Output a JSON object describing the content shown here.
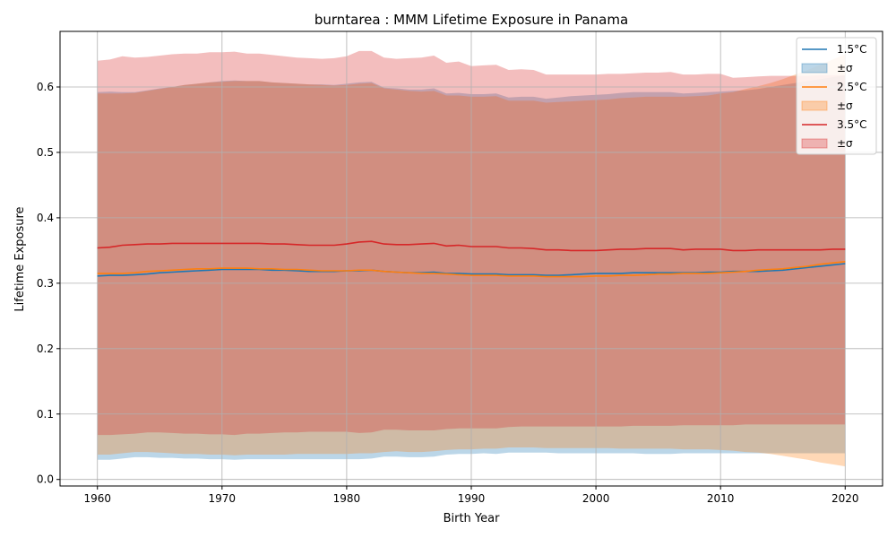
{
  "chart_data": {
    "type": "line",
    "title": "burntarea : MMM Lifetime Exposure in Panama",
    "xlabel": "Birth Year",
    "ylabel": "Lifetime Exposure",
    "xlim": [
      1957,
      2023
    ],
    "ylim": [
      -0.01,
      0.685
    ],
    "xticks": [
      1960,
      1970,
      1980,
      1990,
      2000,
      2010,
      2020
    ],
    "yticks": [
      0.0,
      0.1,
      0.2,
      0.3,
      0.4,
      0.5,
      0.6
    ],
    "grid": true,
    "legend_position": "top-right",
    "x": [
      1960,
      1961,
      1962,
      1963,
      1964,
      1965,
      1966,
      1967,
      1968,
      1969,
      1970,
      1971,
      1972,
      1973,
      1974,
      1975,
      1976,
      1977,
      1978,
      1979,
      1980,
      1981,
      1982,
      1983,
      1984,
      1985,
      1986,
      1987,
      1988,
      1989,
      1990,
      1991,
      1992,
      1993,
      1994,
      1995,
      1996,
      1997,
      1998,
      1999,
      2000,
      2001,
      2002,
      2003,
      2004,
      2005,
      2006,
      2007,
      2008,
      2009,
      2010,
      2011,
      2012,
      2013,
      2014,
      2015,
      2016,
      2017,
      2018,
      2019,
      2020
    ],
    "series": [
      {
        "name": "1.5°C",
        "band_label": "±σ",
        "color": "#1f77b4",
        "values": [
          0.311,
          0.312,
          0.312,
          0.313,
          0.314,
          0.316,
          0.317,
          0.318,
          0.319,
          0.32,
          0.321,
          0.321,
          0.321,
          0.321,
          0.32,
          0.32,
          0.319,
          0.318,
          0.318,
          0.318,
          0.319,
          0.319,
          0.32,
          0.318,
          0.317,
          0.316,
          0.316,
          0.317,
          0.315,
          0.315,
          0.314,
          0.314,
          0.314,
          0.313,
          0.313,
          0.313,
          0.312,
          0.312,
          0.313,
          0.314,
          0.315,
          0.315,
          0.315,
          0.316,
          0.316,
          0.316,
          0.316,
          0.316,
          0.316,
          0.317,
          0.317,
          0.318,
          0.318,
          0.318,
          0.319,
          0.32,
          0.322,
          0.324,
          0.326,
          0.328,
          0.33
        ],
        "lower": [
          0.03,
          0.03,
          0.032,
          0.034,
          0.034,
          0.033,
          0.033,
          0.032,
          0.032,
          0.031,
          0.031,
          0.03,
          0.031,
          0.031,
          0.031,
          0.031,
          0.031,
          0.031,
          0.031,
          0.031,
          0.031,
          0.031,
          0.032,
          0.035,
          0.035,
          0.034,
          0.034,
          0.035,
          0.038,
          0.039,
          0.039,
          0.04,
          0.039,
          0.041,
          0.041,
          0.041,
          0.041,
          0.04,
          0.04,
          0.04,
          0.04,
          0.04,
          0.04,
          0.04,
          0.039,
          0.039,
          0.039,
          0.04,
          0.04,
          0.04,
          0.04,
          0.04,
          0.04,
          0.04,
          0.04,
          0.04,
          0.04,
          0.04,
          0.04,
          0.04,
          0.04
        ],
        "upper": [
          0.592,
          0.593,
          0.592,
          0.592,
          0.595,
          0.598,
          0.6,
          0.603,
          0.605,
          0.607,
          0.609,
          0.61,
          0.609,
          0.609,
          0.607,
          0.606,
          0.605,
          0.604,
          0.604,
          0.603,
          0.605,
          0.607,
          0.608,
          0.599,
          0.598,
          0.596,
          0.596,
          0.598,
          0.59,
          0.591,
          0.589,
          0.589,
          0.59,
          0.584,
          0.585,
          0.585,
          0.582,
          0.584,
          0.586,
          0.587,
          0.588,
          0.589,
          0.591,
          0.592,
          0.592,
          0.592,
          0.592,
          0.59,
          0.591,
          0.592,
          0.593,
          0.594,
          0.595,
          0.597,
          0.6,
          0.603,
          0.606,
          0.609,
          0.612,
          0.615,
          0.618
        ]
      },
      {
        "name": "2.5°C",
        "band_label": "±σ",
        "color": "#ff7f0e",
        "values": [
          0.315,
          0.315,
          0.315,
          0.316,
          0.318,
          0.319,
          0.32,
          0.321,
          0.322,
          0.322,
          0.323,
          0.323,
          0.323,
          0.322,
          0.322,
          0.321,
          0.321,
          0.32,
          0.319,
          0.319,
          0.319,
          0.32,
          0.32,
          0.318,
          0.317,
          0.316,
          0.315,
          0.315,
          0.314,
          0.313,
          0.312,
          0.312,
          0.312,
          0.311,
          0.311,
          0.311,
          0.31,
          0.31,
          0.31,
          0.31,
          0.311,
          0.311,
          0.312,
          0.312,
          0.313,
          0.314,
          0.314,
          0.315,
          0.315,
          0.315,
          0.316,
          0.317,
          0.318,
          0.32,
          0.321,
          0.322,
          0.324,
          0.326,
          0.329,
          0.331,
          0.333
        ],
        "lower": [
          0.038,
          0.038,
          0.04,
          0.042,
          0.042,
          0.041,
          0.04,
          0.039,
          0.039,
          0.038,
          0.038,
          0.037,
          0.038,
          0.038,
          0.038,
          0.038,
          0.039,
          0.039,
          0.039,
          0.039,
          0.039,
          0.04,
          0.04,
          0.042,
          0.043,
          0.042,
          0.042,
          0.043,
          0.045,
          0.046,
          0.046,
          0.047,
          0.047,
          0.049,
          0.049,
          0.049,
          0.048,
          0.048,
          0.048,
          0.048,
          0.048,
          0.048,
          0.047,
          0.047,
          0.047,
          0.047,
          0.047,
          0.046,
          0.046,
          0.046,
          0.045,
          0.044,
          0.042,
          0.041,
          0.039,
          0.036,
          0.033,
          0.03,
          0.026,
          0.023,
          0.02
        ],
        "upper": [
          0.59,
          0.59,
          0.59,
          0.591,
          0.594,
          0.597,
          0.6,
          0.603,
          0.605,
          0.607,
          0.608,
          0.609,
          0.609,
          0.609,
          0.607,
          0.606,
          0.605,
          0.604,
          0.603,
          0.602,
          0.603,
          0.605,
          0.606,
          0.598,
          0.596,
          0.594,
          0.593,
          0.594,
          0.587,
          0.587,
          0.585,
          0.585,
          0.586,
          0.579,
          0.579,
          0.579,
          0.576,
          0.577,
          0.578,
          0.579,
          0.58,
          0.581,
          0.583,
          0.584,
          0.585,
          0.585,
          0.585,
          0.585,
          0.586,
          0.587,
          0.59,
          0.592,
          0.597,
          0.601,
          0.606,
          0.612,
          0.619,
          0.626,
          0.634,
          0.642,
          0.65
        ]
      },
      {
        "name": "3.5°C",
        "band_label": "±σ",
        "color": "#d62728",
        "values": [
          0.354,
          0.355,
          0.358,
          0.359,
          0.36,
          0.36,
          0.361,
          0.361,
          0.361,
          0.361,
          0.361,
          0.361,
          0.361,
          0.361,
          0.36,
          0.36,
          0.359,
          0.358,
          0.358,
          0.358,
          0.36,
          0.363,
          0.364,
          0.36,
          0.359,
          0.359,
          0.36,
          0.361,
          0.357,
          0.358,
          0.356,
          0.356,
          0.356,
          0.354,
          0.354,
          0.353,
          0.351,
          0.351,
          0.35,
          0.35,
          0.35,
          0.351,
          0.352,
          0.352,
          0.353,
          0.353,
          0.353,
          0.351,
          0.352,
          0.352,
          0.352,
          0.35,
          0.35,
          0.351,
          0.351,
          0.351,
          0.351,
          0.351,
          0.351,
          0.352,
          0.352
        ],
        "lower": [
          0.068,
          0.068,
          0.069,
          0.07,
          0.072,
          0.072,
          0.071,
          0.07,
          0.07,
          0.069,
          0.069,
          0.068,
          0.07,
          0.07,
          0.071,
          0.072,
          0.072,
          0.073,
          0.073,
          0.073,
          0.073,
          0.071,
          0.072,
          0.076,
          0.076,
          0.075,
          0.075,
          0.075,
          0.077,
          0.078,
          0.078,
          0.078,
          0.078,
          0.08,
          0.081,
          0.081,
          0.081,
          0.081,
          0.081,
          0.081,
          0.081,
          0.081,
          0.081,
          0.082,
          0.082,
          0.082,
          0.082,
          0.083,
          0.083,
          0.083,
          0.083,
          0.083,
          0.084,
          0.084,
          0.084,
          0.084,
          0.084,
          0.084,
          0.084,
          0.084,
          0.084
        ],
        "upper": [
          0.64,
          0.642,
          0.647,
          0.645,
          0.646,
          0.648,
          0.65,
          0.651,
          0.651,
          0.653,
          0.653,
          0.654,
          0.651,
          0.651,
          0.649,
          0.647,
          0.645,
          0.644,
          0.643,
          0.644,
          0.647,
          0.655,
          0.655,
          0.645,
          0.643,
          0.644,
          0.645,
          0.648,
          0.637,
          0.639,
          0.632,
          0.633,
          0.634,
          0.626,
          0.627,
          0.626,
          0.619,
          0.619,
          0.619,
          0.619,
          0.619,
          0.62,
          0.62,
          0.621,
          0.622,
          0.622,
          0.623,
          0.619,
          0.619,
          0.62,
          0.62,
          0.614,
          0.615,
          0.616,
          0.617,
          0.617,
          0.617,
          0.617,
          0.618,
          0.618,
          0.618
        ]
      }
    ]
  }
}
